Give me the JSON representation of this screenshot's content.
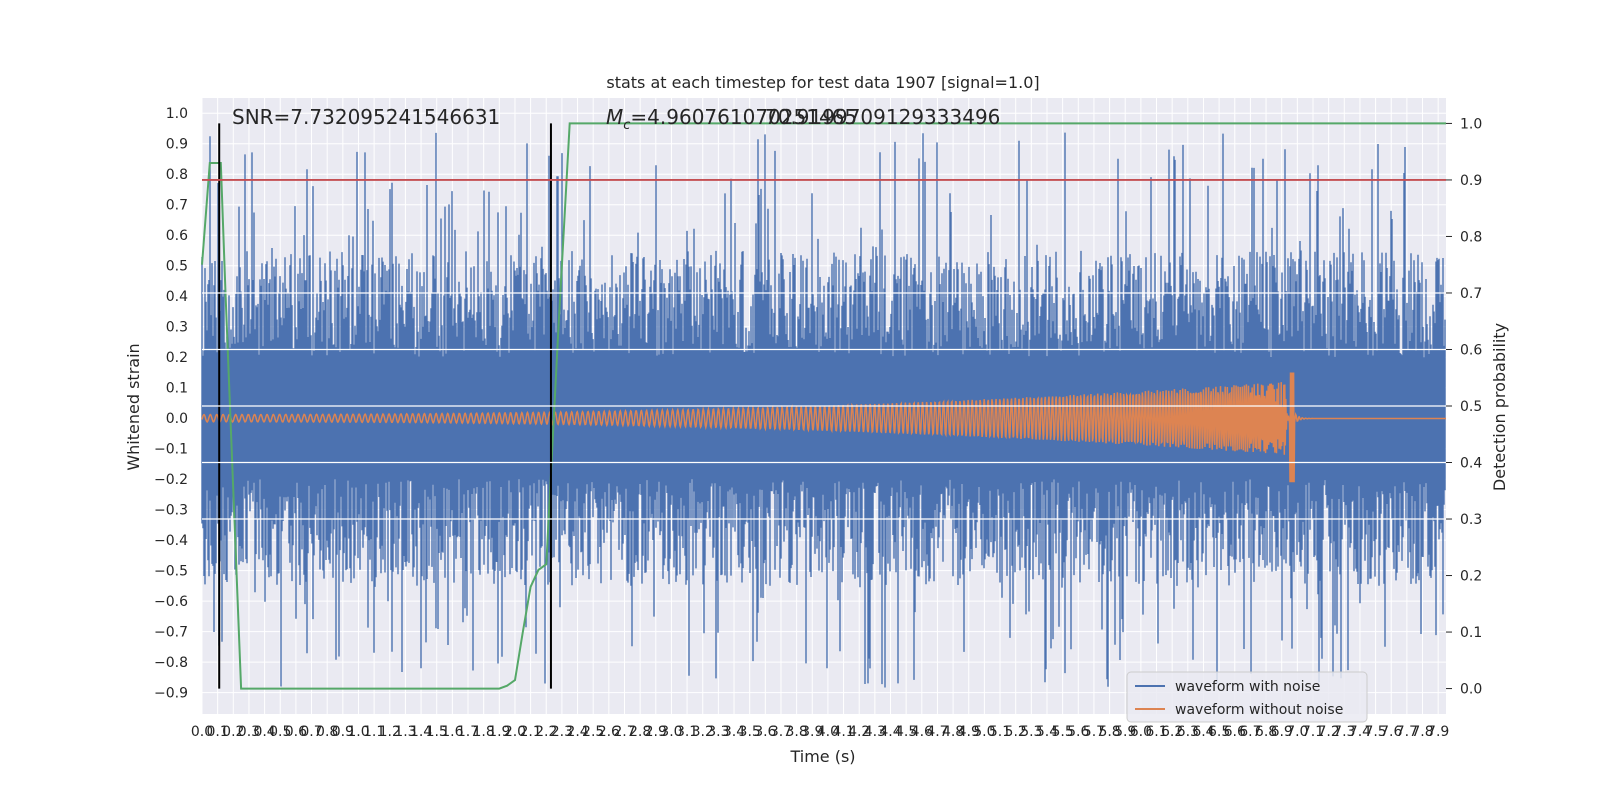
{
  "chart_data": {
    "type": "line",
    "title": "stats at each timestep for test data 1907 [signal=1.0]",
    "xlabel": "Time (s)",
    "ylabel": "Whitened strain",
    "y2label": "Detection probability",
    "xlim": [
      0.0,
      7.95
    ],
    "ylim": [
      -0.97,
      1.05
    ],
    "y2lim": [
      -0.045,
      1.045
    ],
    "x_ticks": [
      "0.0",
      "0.1",
      "0.2",
      "0.3",
      "0.4",
      "0.5",
      "0.6",
      "0.7",
      "0.8",
      "0.9",
      "1.0",
      "1.1",
      "1.2",
      "1.3",
      "1.4",
      "1.5",
      "1.6",
      "1.7",
      "1.8",
      "1.9",
      "2.0",
      "2.1",
      "2.2",
      "2.3",
      "2.4",
      "2.5",
      "2.6",
      "2.7",
      "2.8",
      "2.9",
      "3.0",
      "3.1",
      "3.2",
      "3.3",
      "3.4",
      "3.5",
      "3.6",
      "3.7",
      "3.8",
      "3.9",
      "4.0",
      "4.1",
      "4.2",
      "4.3",
      "4.4",
      "4.5",
      "4.6",
      "4.7",
      "4.8",
      "4.9",
      "5.0",
      "5.1",
      "5.2",
      "5.3",
      "5.4",
      "5.5",
      "5.6",
      "5.7",
      "5.8",
      "5.9",
      "6.0",
      "6.1",
      "6.2",
      "6.3",
      "6.4",
      "6.5",
      "6.6",
      "6.7",
      "6.8",
      "6.9",
      "7.0",
      "7.1",
      "7.2",
      "7.3",
      "7.4",
      "7.5",
      "7.6",
      "7.7",
      "7.8",
      "7.9"
    ],
    "y_ticks": [
      "1.0",
      "0.9",
      "0.8",
      "0.7",
      "0.6",
      "0.5",
      "0.4",
      "0.3",
      "0.2",
      "0.1",
      "0.0",
      "-0.1",
      "-0.2",
      "-0.3",
      "-0.4",
      "-0.5",
      "-0.6",
      "-0.7",
      "-0.8",
      "-0.9"
    ],
    "y2_ticks": [
      "1.0",
      "0.9",
      "0.8",
      "0.7",
      "0.6",
      "0.5",
      "0.4",
      "0.3",
      "0.2",
      "0.1",
      "0.0"
    ],
    "annotations": {
      "snr": "SNR=7.732095241546631",
      "mc_prefix": "M",
      "mc_sub": "c",
      "mc_value": "=4.960761070251465",
      "mc_overlap": "70.9199709129333496"
    },
    "threshold": 0.9,
    "vlines": [
      0.11,
      2.23
    ],
    "series": [
      {
        "name": "waveform with noise",
        "color": "#4c72b0",
        "style": "noise",
        "amplitude_envelope": [
          0.45,
          0.95
        ],
        "seed": 1907
      },
      {
        "name": "waveform without noise",
        "color": "#dd8452",
        "style": "chirp",
        "merger_time": 6.98,
        "peak_positive": 0.15,
        "peak_negative": -0.21
      },
      {
        "name": "detection probability",
        "color": "#55a868",
        "axis": "right",
        "x": [
          0.0,
          0.05,
          0.12,
          0.15,
          0.25,
          0.4,
          1.0,
          1.9,
          1.95,
          2.0,
          2.05,
          2.1,
          2.15,
          2.2,
          2.28,
          2.35,
          3.0,
          7.95
        ],
        "values": [
          0.75,
          0.93,
          0.93,
          0.7,
          0.0,
          0.0,
          0.0,
          0.0,
          0.005,
          0.015,
          0.1,
          0.18,
          0.21,
          0.22,
          0.65,
          1.0,
          1.0,
          1.0
        ]
      },
      {
        "name": "threshold",
        "color": "#c44e52",
        "axis": "right",
        "values": [
          0.9
        ]
      }
    ],
    "legend": {
      "position": "lower-right",
      "entries": [
        "waveform with noise",
        "waveform without noise"
      ]
    },
    "grid": true
  },
  "colors": {
    "background": "#eaeaf2",
    "grid": "#ffffff",
    "noise": "#4c72b0",
    "clean": "#dd8452",
    "prob": "#55a868",
    "threshold": "#c44e52",
    "vline": "#000000"
  }
}
